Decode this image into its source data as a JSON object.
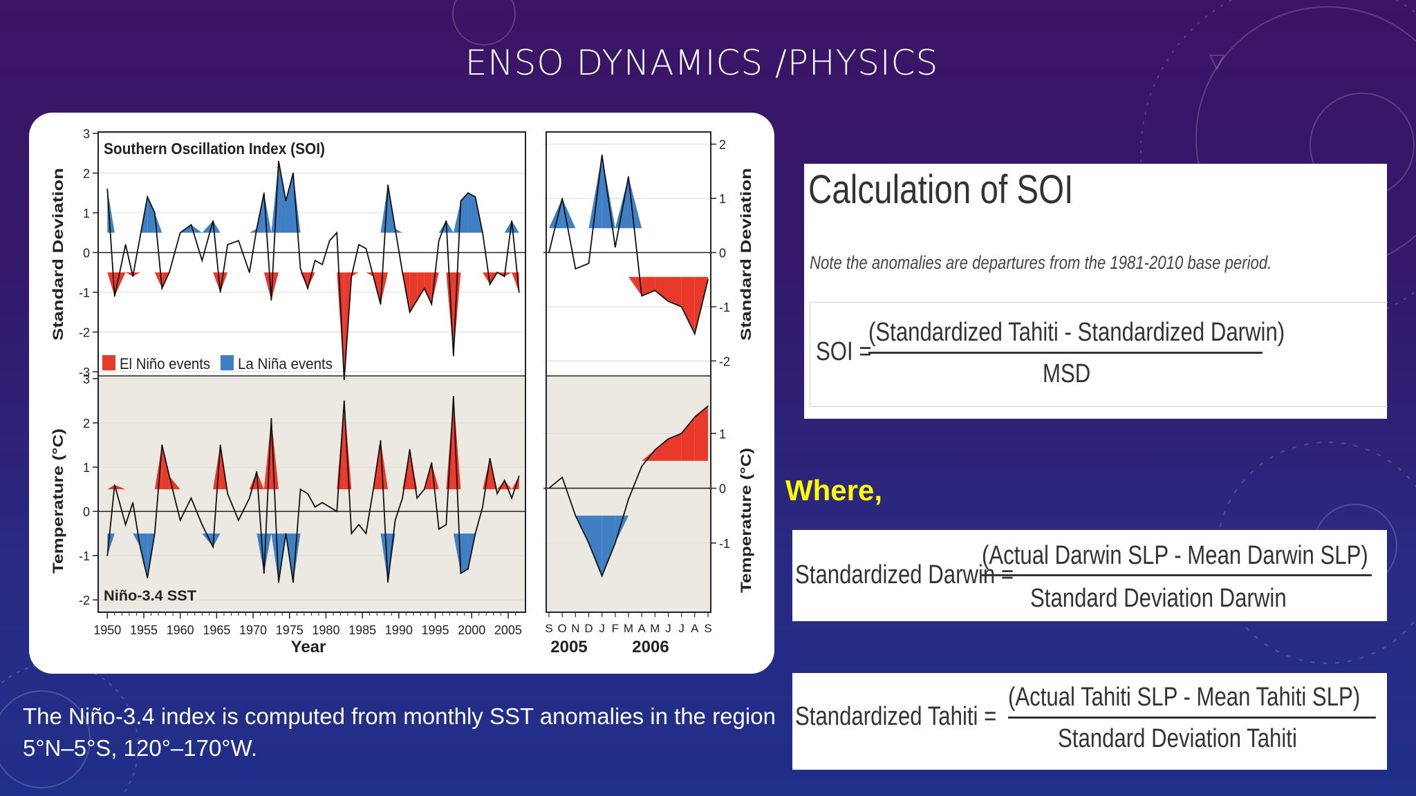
{
  "slide": {
    "title": "ENSO DYNAMICS /PHYSICS",
    "caption": "The Niño-3.4 index is computed from monthly SST anomalies in the region 5°N–5°S, 120°–170°W.",
    "where_label": "Where,"
  },
  "soi_panel": {
    "heading": "Calculation of SOI",
    "note": "Note the anomalies are departures from the 1981-2010 base period.",
    "lhs": "SOI =",
    "numerator": "(Standardized Tahiti - Standardized Darwin)",
    "denominator": "MSD"
  },
  "darwin_eq": {
    "lhs": "Standardized Darwin =",
    "numerator": "(Actual Darwin SLP - Mean Darwin SLP)",
    "denominator": "Standard Deviation Darwin"
  },
  "tahiti_eq": {
    "lhs": "Standardized Tahiti =",
    "numerator": "(Actual Tahiti SLP - Mean Tahiti SLP)",
    "denominator": "Standard Deviation Tahiti"
  },
  "colors": {
    "el_nino": "#e8392a",
    "la_nina": "#3f7fc4",
    "sst_bg": "#ebe9e1",
    "soi_bg": "#ffffff",
    "highlight": "#ffff00"
  },
  "chart_data": [
    {
      "type": "area",
      "title": "Southern Oscillation Index (SOI)",
      "ylabel": "Standard Deviation",
      "xlabel": "Year",
      "ylim": [
        -3,
        3
      ],
      "yticks": [
        "3",
        "2",
        "1",
        "0",
        "-1",
        "-2",
        "-3"
      ],
      "xticks": [
        "1950",
        "1955",
        "1960",
        "1965",
        "1970",
        "1975",
        "1980",
        "1985",
        "1990",
        "1995",
        "2000",
        "2005"
      ],
      "legend": [
        "El Niño events",
        "La Niña events"
      ],
      "legend_position": "bottom-left",
      "x": [
        1950.0,
        1951.0,
        1952.5,
        1953.5,
        1954.5,
        1955.5,
        1956.5,
        1957.5,
        1958.5,
        1960,
        1961.5,
        1963,
        1964.5,
        1965.5,
        1966.5,
        1968,
        1969.5,
        1970.5,
        1971.5,
        1972.5,
        1973.5,
        1974.5,
        1975.5,
        1976.5,
        1977.5,
        1978.5,
        1979.5,
        1980.5,
        1981.5,
        1982.5,
        1983.5,
        1984.5,
        1985.5,
        1986.5,
        1987.5,
        1988.5,
        1989.5,
        1990.5,
        1991.5,
        1992.5,
        1993.5,
        1994.5,
        1995.5,
        1996.5,
        1997.5,
        1998.5,
        1999.5,
        2000.5,
        2001.5,
        2002.5,
        2003.5,
        2004.5,
        2005.5,
        2006.5
      ],
      "values": [
        1.6,
        -1.1,
        0.2,
        -0.6,
        0.4,
        1.4,
        1.0,
        -0.9,
        -0.5,
        0.5,
        0.7,
        -0.2,
        0.8,
        -1.0,
        0.2,
        0.3,
        -0.5,
        0.6,
        1.5,
        -1.2,
        2.3,
        1.3,
        2.0,
        -0.4,
        -0.9,
        -0.2,
        -0.3,
        0.3,
        0.5,
        -3.2,
        -0.6,
        0.2,
        0.1,
        -0.6,
        -1.3,
        1.7,
        0.6,
        -0.5,
        -1.5,
        -1.2,
        -0.9,
        -1.3,
        0.3,
        0.8,
        -2.6,
        1.3,
        1.5,
        1.4,
        0.5,
        -0.8,
        -0.5,
        -0.6,
        0.8,
        -1.0
      ]
    },
    {
      "type": "area",
      "title": "Niño-3.4 SST",
      "ylabel": "Temperature (°C)",
      "xlabel": "Year",
      "ylim": [
        -2,
        3
      ],
      "yticks": [
        "3",
        "2",
        "1",
        "0",
        "-1",
        "-2"
      ],
      "xticks": [
        "1950",
        "1955",
        "1960",
        "1965",
        "1970",
        "1975",
        "1980",
        "1985",
        "1990",
        "1995",
        "2000",
        "2005"
      ],
      "x": [
        1950.0,
        1951.0,
        1952.5,
        1953.5,
        1954.5,
        1955.5,
        1956.5,
        1957.5,
        1958.5,
        1960,
        1961.5,
        1963,
        1964.5,
        1965.5,
        1966.5,
        1968,
        1969.5,
        1970.5,
        1971.5,
        1972.5,
        1973.5,
        1974.5,
        1975.5,
        1976.5,
        1977.5,
        1978.5,
        1979.5,
        1980.5,
        1981.5,
        1982.5,
        1983.5,
        1984.5,
        1985.5,
        1986.5,
        1987.5,
        1988.5,
        1989.5,
        1990.5,
        1991.5,
        1992.5,
        1993.5,
        1994.5,
        1995.5,
        1996.5,
        1997.5,
        1998.5,
        1999.5,
        2000.5,
        2001.5,
        2002.5,
        2003.5,
        2004.5,
        2005.5,
        2006.5
      ],
      "values": [
        -1.0,
        0.6,
        -0.3,
        0.2,
        -0.8,
        -1.5,
        -0.5,
        1.5,
        0.8,
        -0.2,
        0.3,
        -0.3,
        -0.8,
        1.5,
        0.4,
        -0.2,
        0.3,
        0.9,
        -1.4,
        2.1,
        -1.6,
        -0.5,
        -1.6,
        0.5,
        0.4,
        0.1,
        0.2,
        0.1,
        0.0,
        2.5,
        -0.5,
        -0.3,
        -0.5,
        0.5,
        1.6,
        -1.6,
        -0.2,
        0.3,
        1.4,
        0.3,
        0.5,
        1.1,
        -0.4,
        -0.3,
        2.6,
        -1.4,
        -1.3,
        -0.5,
        0.1,
        1.2,
        0.4,
        0.7,
        0.3,
        0.8
      ]
    },
    {
      "type": "area",
      "title": "",
      "ylabel": "Standard Deviation",
      "ylim": [
        -2,
        2
      ],
      "yticks": [
        "2",
        "1",
        "0",
        "-1",
        "-2"
      ],
      "xticks": [
        "S",
        "O",
        "N",
        "D",
        "J",
        "F",
        "M",
        "A",
        "M",
        "J",
        "J",
        "A",
        "S"
      ],
      "years": [
        "2005",
        "2006"
      ],
      "x": [
        "S",
        "O",
        "N",
        "D",
        "J",
        "F",
        "M",
        "A",
        "M",
        "J",
        "J",
        "A",
        "S"
      ],
      "values": [
        0.0,
        1.0,
        -0.3,
        -0.2,
        1.8,
        0.1,
        1.4,
        -0.8,
        -0.7,
        -0.9,
        -1.0,
        -1.5,
        -0.5
      ]
    },
    {
      "type": "area",
      "title": "",
      "ylabel": "Temperature (°C)",
      "ylim": [
        -1,
        2
      ],
      "yticks": [
        "1",
        "0",
        "-1"
      ],
      "xticks": [
        "S",
        "O",
        "N",
        "D",
        "J",
        "F",
        "M",
        "A",
        "M",
        "J",
        "J",
        "A",
        "S"
      ],
      "years": [
        "2005",
        "2006"
      ],
      "x": [
        "S",
        "O",
        "N",
        "D",
        "J",
        "F",
        "M",
        "A",
        "M",
        "J",
        "J",
        "A",
        "S"
      ],
      "values": [
        0.0,
        0.2,
        -0.5,
        -1.0,
        -1.6,
        -1.0,
        -0.2,
        0.4,
        0.7,
        0.9,
        1.0,
        1.3,
        1.5
      ]
    }
  ]
}
